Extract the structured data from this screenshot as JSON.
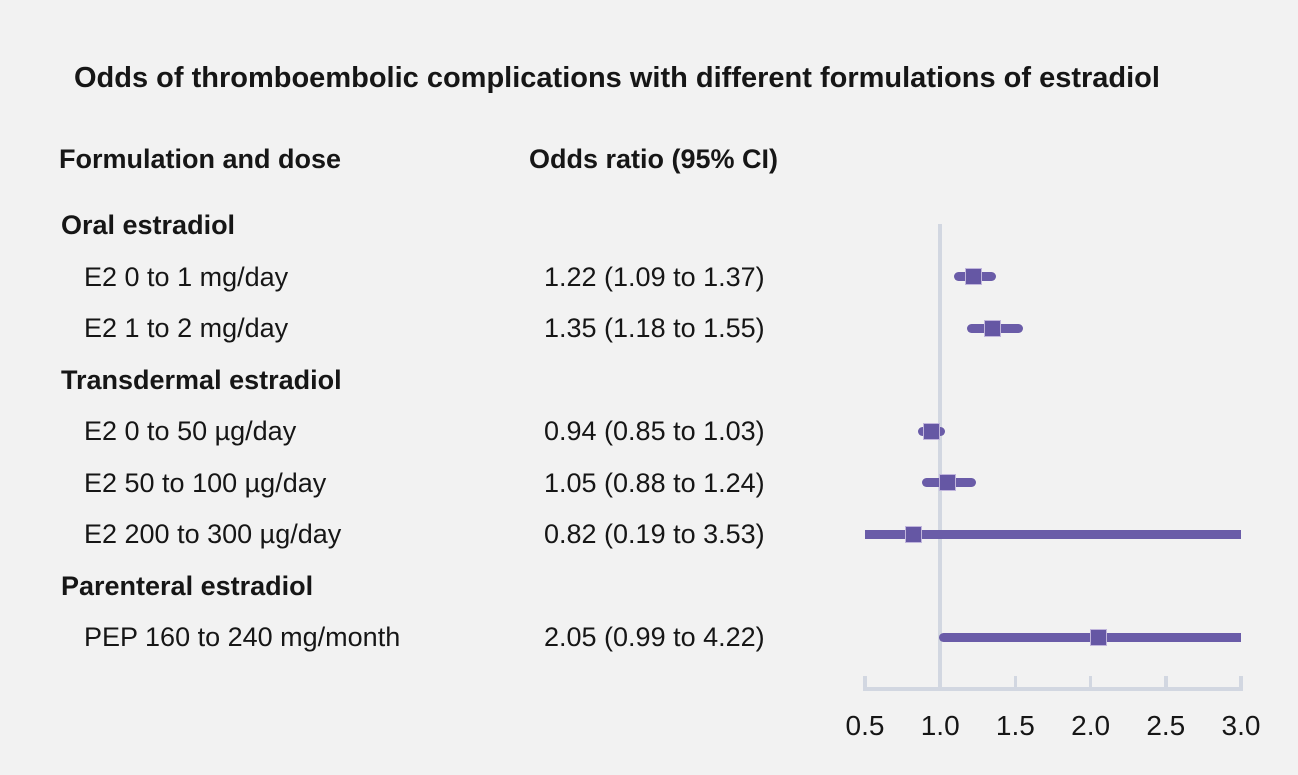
{
  "chart_data": {
    "type": "forest",
    "title": "Odds of thromboembolic complications with different formulations of estradiol",
    "columns": {
      "formulation": "Formulation and dose",
      "odds_ratio": "Odds ratio (95% CI)"
    },
    "rows": [
      {
        "kind": "group",
        "label": "Oral estradiol"
      },
      {
        "kind": "item",
        "label": "E2 0 to 1 mg/day",
        "or_text": "1.22 (1.09 to 1.37)",
        "estimate": 1.22,
        "ci_low": 1.09,
        "ci_high": 1.37
      },
      {
        "kind": "item",
        "label": "E2 1 to 2 mg/day",
        "or_text": "1.35 (1.18 to 1.55)",
        "estimate": 1.35,
        "ci_low": 1.18,
        "ci_high": 1.55
      },
      {
        "kind": "group",
        "label": "Transdermal estradiol"
      },
      {
        "kind": "item",
        "label": "E2 0 to 50 µg/day",
        "or_text": "0.94 (0.85 to 1.03)",
        "estimate": 0.94,
        "ci_low": 0.85,
        "ci_high": 1.03
      },
      {
        "kind": "item",
        "label": "E2 50 to 100 µg/day",
        "or_text": "1.05 (0.88 to 1.24)",
        "estimate": 1.05,
        "ci_low": 0.88,
        "ci_high": 1.24
      },
      {
        "kind": "item",
        "label": "E2 200 to 300 µg/day",
        "or_text": "0.82 (0.19 to 3.53)",
        "estimate": 0.82,
        "ci_low": 0.19,
        "ci_high": 3.53
      },
      {
        "kind": "group",
        "label": "Parenteral estradiol"
      },
      {
        "kind": "item",
        "label": "PEP 160 to 240 mg/month",
        "or_text": "2.05 (0.99 to 4.22)",
        "estimate": 2.05,
        "ci_low": 0.99,
        "ci_high": 4.22
      }
    ],
    "axis": {
      "min": 0.5,
      "max": 3.0,
      "reference_line": 1.0,
      "ticks": [
        0.5,
        1.0,
        1.5,
        2.0,
        2.5,
        3.0
      ],
      "tick_labels": [
        "0.5",
        "1.0",
        "1.5",
        "2.0",
        "2.5",
        "3.0"
      ]
    },
    "colors": {
      "background": "#f2f2f2",
      "text": "#161616",
      "ci_line": "#6a5ca8",
      "marker_fill": "#6557a4",
      "marker_border": "#c0b5dc",
      "axis": "#d2d7e1"
    }
  }
}
